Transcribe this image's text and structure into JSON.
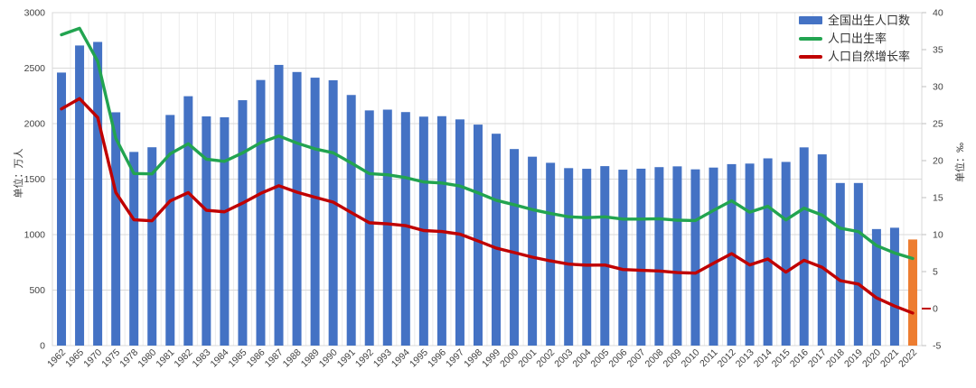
{
  "chart_data": {
    "type": "bar+line combo",
    "title": "",
    "categories": [
      "1962",
      "1965",
      "1970",
      "1975",
      "1978",
      "1980",
      "1981",
      "1982",
      "1983",
      "1984",
      "1985",
      "1986",
      "1987",
      "1988",
      "1989",
      "1990",
      "1991",
      "1992",
      "1993",
      "1994",
      "1995",
      "1996",
      "1997",
      "1998",
      "1999",
      "2000",
      "2001",
      "2002",
      "2003",
      "2004",
      "2005",
      "2006",
      "2007",
      "2008",
      "2009",
      "2010",
      "2011",
      "2012",
      "2013",
      "2014",
      "2015",
      "2016",
      "2017",
      "2018",
      "2019",
      "2020",
      "2021",
      "2022"
    ],
    "series": [
      {
        "name": "全国出生人口数",
        "type": "bar",
        "axis": "left",
        "color": "#4472C4",
        "last_bar_color": "#ED7D31",
        "values": [
          2460,
          2704,
          2736,
          2102,
          1745,
          1787,
          2078,
          2247,
          2065,
          2057,
          2211,
          2393,
          2529,
          2465,
          2414,
          2391,
          2258,
          2119,
          2126,
          2104,
          2063,
          2067,
          2038,
          1991,
          1909,
          1771,
          1702,
          1647,
          1599,
          1593,
          1617,
          1585,
          1594,
          1608,
          1615,
          1588,
          1604,
          1635,
          1640,
          1687,
          1655,
          1786,
          1723,
          1465,
          1465,
          1050,
          1062,
          956
        ]
      },
      {
        "name": "人口出生率",
        "type": "line",
        "axis": "right",
        "color": "#22A450",
        "values": [
          37.01,
          37.88,
          33.43,
          23.01,
          18.25,
          18.21,
          20.91,
          22.28,
          20.19,
          19.9,
          21.04,
          22.43,
          23.33,
          22.37,
          21.58,
          21.06,
          19.68,
          18.24,
          18.09,
          17.7,
          17.12,
          16.98,
          16.57,
          15.64,
          14.64,
          14.03,
          13.38,
          12.86,
          12.41,
          12.29,
          12.4,
          12.09,
          12.1,
          12.14,
          11.95,
          11.9,
          13.27,
          14.57,
          13.03,
          13.83,
          11.99,
          13.57,
          12.64,
          10.86,
          10.41,
          8.52,
          7.52,
          6.77
        ]
      },
      {
        "name": "人口自然增长率",
        "type": "line",
        "axis": "right",
        "color": "#C00000",
        "values": [
          26.99,
          28.38,
          25.83,
          15.69,
          12.0,
          11.87,
          14.55,
          15.68,
          13.29,
          13.08,
          14.26,
          15.57,
          16.61,
          15.73,
          15.04,
          14.39,
          12.98,
          11.6,
          11.45,
          11.21,
          10.55,
          10.42,
          10.06,
          9.14,
          8.18,
          7.58,
          6.95,
          6.45,
          6.01,
          5.87,
          5.89,
          5.28,
          5.17,
          5.08,
          4.87,
          4.79,
          6.13,
          7.43,
          5.9,
          6.71,
          4.93,
          6.53,
          5.58,
          3.78,
          3.32,
          1.45,
          0.34,
          -0.6
        ]
      }
    ],
    "left_axis": {
      "label": "单位：万人",
      "min": 0,
      "max": 3000,
      "tick_step": 500,
      "ticks": [
        3000,
        2500,
        2000,
        1500,
        1000,
        500,
        0
      ]
    },
    "right_axis": {
      "label": "单位：‰",
      "min": -5,
      "max": 40,
      "tick_step": 5,
      "ticks": [
        40,
        35,
        30,
        25,
        20,
        15,
        10,
        5,
        0,
        -5
      ],
      "zero_tick_color": "#C00000"
    },
    "grid": {
      "horizontal": true,
      "vertical": true
    },
    "legend_position": "top-right"
  },
  "colors": {
    "bar_blue": "#4472C4",
    "bar_orange": "#ED7D31",
    "line_green": "#22A450",
    "line_red": "#C00000",
    "grid_h": "#D9D9D9",
    "grid_v": "#ECECEC",
    "plot_border": "#D9D9D9",
    "tick_mark": "#BFBFBF",
    "axis_text": "#404040"
  }
}
